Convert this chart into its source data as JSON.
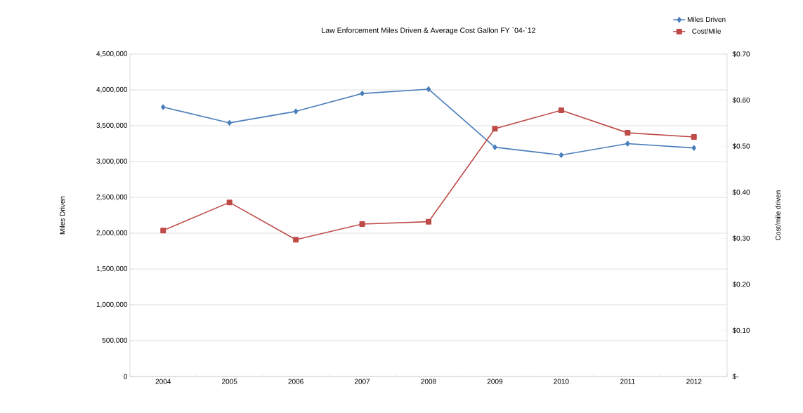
{
  "chart_data": {
    "type": "line",
    "title": "Law Enforcement Miles Driven & Average Cost Gallon FY `04-`12",
    "ylabel": "Miles Driven",
    "y2label": "Cost/mile driven",
    "categories": [
      "2004",
      "2005",
      "2006",
      "2007",
      "2008",
      "2009",
      "2010",
      "2011",
      "2012"
    ],
    "series": [
      {
        "name": "Miles Driven",
        "color": "#4a7ebb",
        "marker": "diamond",
        "values": [
          3760000,
          3540000,
          3700000,
          3950000,
          4010000,
          3200000,
          3090000,
          3250000,
          3190000
        ]
      },
      {
        "name": "Cost/Mile",
        "color": "#be4b48",
        "marker": "square",
        "axis": "y2",
        "values": [
          0.317,
          0.378,
          0.297,
          0.331,
          0.336,
          0.538,
          0.578,
          0.529,
          0.52
        ]
      }
    ],
    "ylim": [
      0,
      4500000
    ],
    "yticks": [
      0,
      {
        "value": 500000,
        "label": "500,000"
      },
      {
        "value": 1000000,
        "label": "1,000,000"
      },
      {
        "value": 1500000,
        "label": "1,500,000"
      },
      {
        "value": 2000000,
        "label": "2,000,000"
      },
      {
        "value": 2500000,
        "label": "2,500,000"
      },
      {
        "value": 3000000,
        "label": "3,000,000"
      },
      {
        "value": 3500000,
        "label": "3,500,000"
      },
      {
        "value": 4000000,
        "label": "4,000,000"
      },
      {
        "value": 4500000,
        "label": "4,500,000"
      }
    ],
    "y2lim": [
      0,
      0.7
    ],
    "y2ticks": [
      {
        "value": 0,
        "label": "$-"
      },
      {
        "value": 0.1,
        "label": "$0.10"
      },
      {
        "value": 0.2,
        "label": "$0.20"
      },
      {
        "value": 0.3,
        "label": "$0.30"
      },
      {
        "value": 0.4,
        "label": "$0.40"
      },
      {
        "value": 0.5,
        "label": "$0.50"
      },
      {
        "value": 0.6,
        "label": "$0.60"
      },
      {
        "value": 0.7,
        "label": "$0.70"
      }
    ],
    "grid": "y",
    "legend": "top right",
    "line_style": "solid"
  }
}
